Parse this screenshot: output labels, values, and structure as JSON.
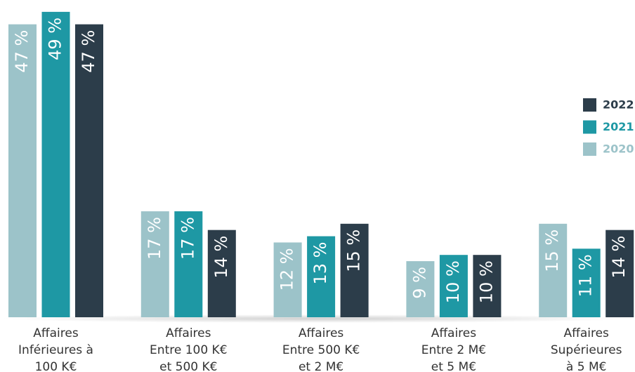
{
  "chart_data": {
    "type": "bar",
    "categories": [
      [
        "Affaires",
        "Inférieures à",
        "100 K€"
      ],
      [
        "Affaires",
        "Entre 100 K€",
        "et 500 K€"
      ],
      [
        "Affaires",
        "Entre 500 K€",
        "et 2 M€"
      ],
      [
        "Affaires",
        "Entre 2 M€",
        "et 5 M€"
      ],
      [
        "Affaires",
        "Supérieures",
        "à 5 M€"
      ]
    ],
    "series": [
      {
        "name": "2020",
        "color": "#9cc3c9",
        "values": [
          47,
          17,
          12,
          9,
          15
        ],
        "value_labels": [
          "47 %",
          "17 %",
          "12 %",
          "9 %",
          "15 %"
        ]
      },
      {
        "name": "2021",
        "color": "#1e98a4",
        "values": [
          49,
          17,
          13,
          10,
          11
        ],
        "value_labels": [
          "49 %",
          "17 %",
          "13 %",
          "10 %",
          "11 %"
        ]
      },
      {
        "name": "2022",
        "color": "#2c3d4a",
        "values": [
          47,
          14,
          15,
          10,
          14
        ],
        "value_labels": [
          "47 %",
          "14 %",
          "15 %",
          "10 %",
          "14 %"
        ]
      }
    ]
  }
}
